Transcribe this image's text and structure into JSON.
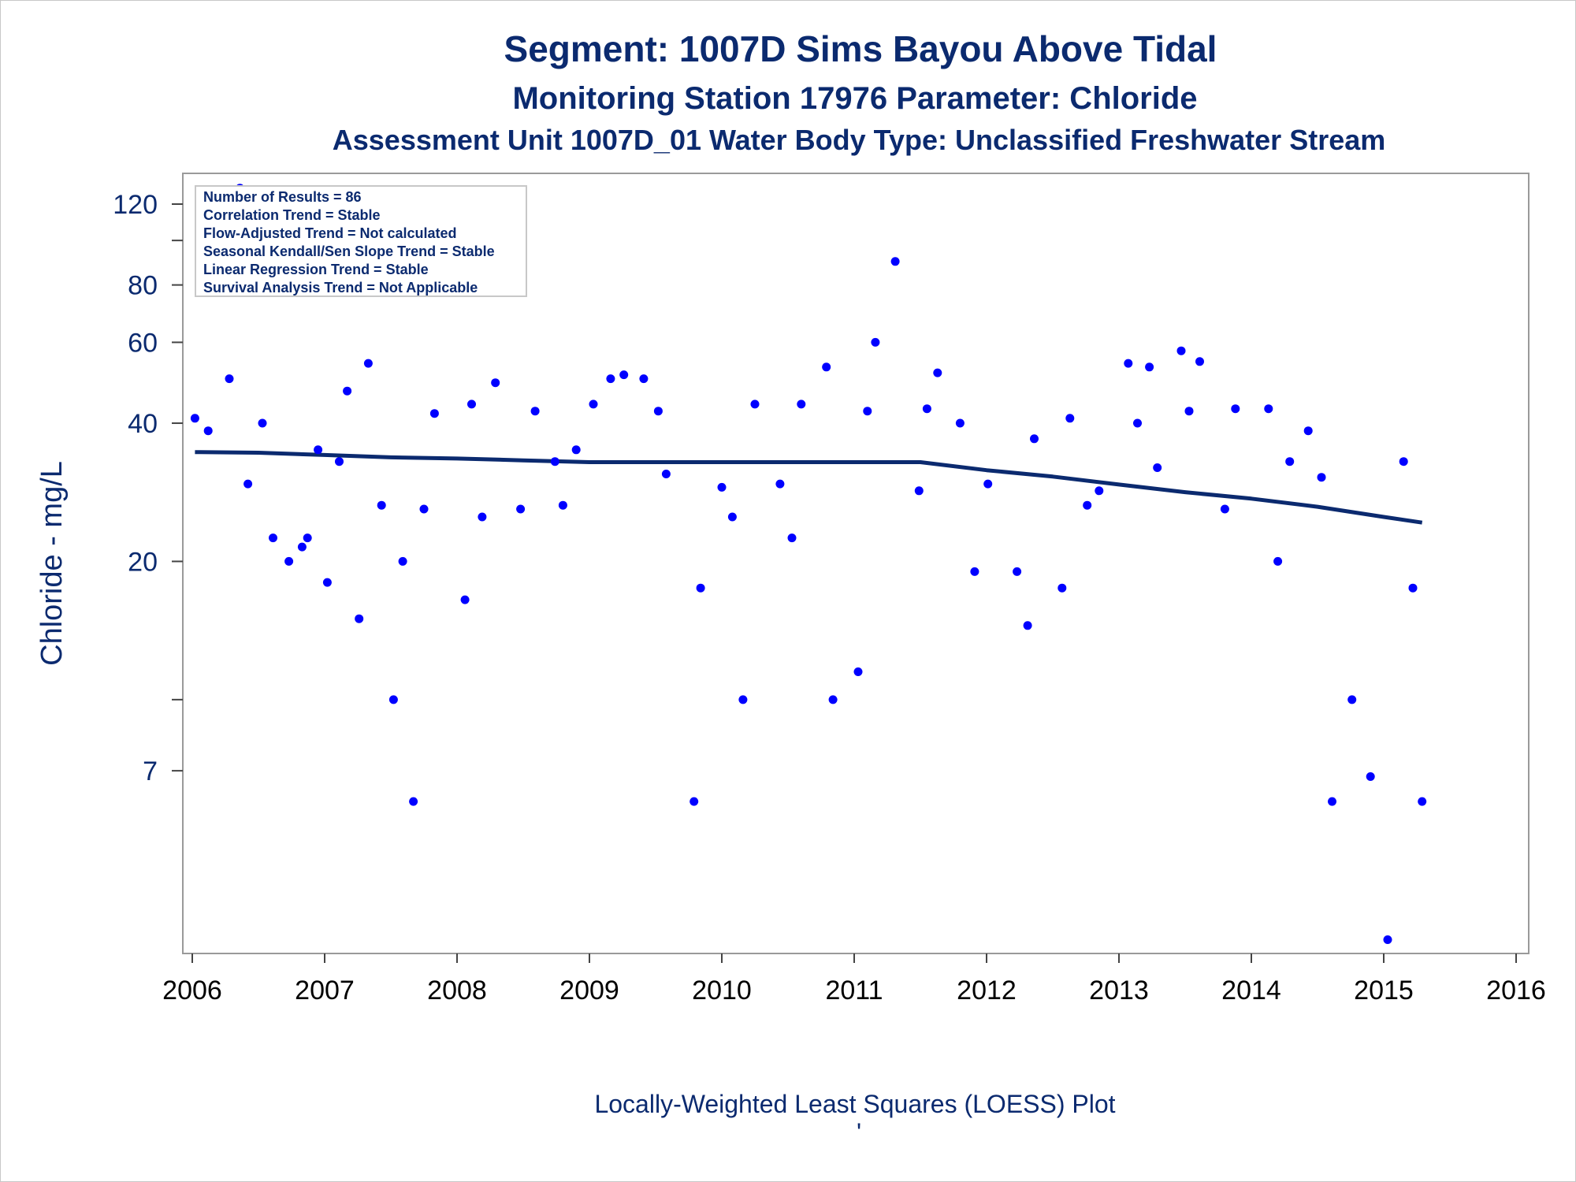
{
  "chart_data": {
    "type": "scatter",
    "title": "Segment: 1007D  Sims Bayou Above Tidal",
    "subtitle": "Monitoring Station 17976 Parameter: Chloride",
    "subtitle2": "Assessment Unit 1007D_01   Water Body Type: Unclassified Freshwater Stream",
    "xlabel": "",
    "ylabel": "Chloride - mg/L",
    "footnote": "Locally-Weighted Least Squares (LOESS) Plot",
    "footnote_mark": "'",
    "x_ticks": [
      "2006",
      "2007",
      "2008",
      "2009",
      "2010",
      "2011",
      "2012",
      "2013",
      "2014",
      "2015",
      "2016"
    ],
    "y_ticks": [
      "120",
      "80",
      "60",
      "40",
      "20",
      "7"
    ],
    "y_scale": "log",
    "xlim": [
      2006.0,
      2016.0
    ],
    "ylim": [
      2.8,
      140
    ],
    "grid": false,
    "stats_box": [
      "Number of Results = 86",
      "Correlation Trend = Stable",
      "Flow-Adjusted Trend = Not calculated",
      "Seasonal Kendall/Sen Slope Trend = Stable",
      "Linear Regression Trend = Stable",
      "Survival Analysis Trend = Not Applicable"
    ],
    "legend_position": "top-left",
    "colors": {
      "points": "#0000ff",
      "trend": "#0b2a6f",
      "text": "#0b2a6f",
      "frame": "#9a9a9a"
    },
    "points": [
      [
        2006.02,
        41
      ],
      [
        2006.12,
        38.5
      ],
      [
        2006.28,
        50
      ],
      [
        2006.36,
        130
      ],
      [
        2006.42,
        29.5
      ],
      [
        2006.53,
        40
      ],
      [
        2006.61,
        22.5
      ],
      [
        2006.73,
        20
      ],
      [
        2006.83,
        21.5
      ],
      [
        2006.87,
        22.5
      ],
      [
        2006.95,
        35
      ],
      [
        2007.02,
        18
      ],
      [
        2007.11,
        33
      ],
      [
        2007.17,
        47
      ],
      [
        2007.26,
        15
      ],
      [
        2007.33,
        54
      ],
      [
        2007.43,
        26.5
      ],
      [
        2007.52,
        10
      ],
      [
        2007.59,
        20
      ],
      [
        2007.67,
        6
      ],
      [
        2007.75,
        26
      ],
      [
        2007.83,
        42
      ],
      [
        2008.06,
        16.5
      ],
      [
        2008.11,
        44
      ],
      [
        2008.19,
        25
      ],
      [
        2008.29,
        49
      ],
      [
        2008.48,
        26
      ],
      [
        2008.59,
        42.5
      ],
      [
        2008.74,
        33
      ],
      [
        2008.8,
        26.5
      ],
      [
        2008.9,
        35
      ],
      [
        2009.03,
        44
      ],
      [
        2009.16,
        50
      ],
      [
        2009.26,
        51
      ],
      [
        2009.41,
        50
      ],
      [
        2009.52,
        42.5
      ],
      [
        2009.58,
        31
      ],
      [
        2009.79,
        6
      ],
      [
        2009.84,
        17.5
      ],
      [
        2010.0,
        29
      ],
      [
        2010.08,
        25
      ],
      [
        2010.16,
        10
      ],
      [
        2010.25,
        44
      ],
      [
        2010.44,
        29.5
      ],
      [
        2010.53,
        22.5
      ],
      [
        2010.6,
        44
      ],
      [
        2010.79,
        53
      ],
      [
        2010.84,
        10
      ],
      [
        2011.03,
        11.5
      ],
      [
        2011.1,
        42.5
      ],
      [
        2011.16,
        60
      ],
      [
        2011.31,
        90
      ],
      [
        2011.49,
        28.5
      ],
      [
        2011.55,
        43
      ],
      [
        2011.63,
        51.5
      ],
      [
        2011.8,
        40
      ],
      [
        2011.91,
        19
      ],
      [
        2012.01,
        29.5
      ],
      [
        2012.23,
        19
      ],
      [
        2012.31,
        14.5
      ],
      [
        2012.36,
        37
      ],
      [
        2012.57,
        17.5
      ],
      [
        2012.63,
        41
      ],
      [
        2012.76,
        26.5
      ],
      [
        2012.85,
        28.5
      ],
      [
        2013.07,
        54
      ],
      [
        2013.14,
        40
      ],
      [
        2013.23,
        53
      ],
      [
        2013.29,
        32
      ],
      [
        2013.47,
        57.5
      ],
      [
        2013.53,
        42.5
      ],
      [
        2013.61,
        54.5
      ],
      [
        2013.8,
        26
      ],
      [
        2013.88,
        43
      ],
      [
        2014.13,
        43
      ],
      [
        2014.2,
        20
      ],
      [
        2014.29,
        33
      ],
      [
        2014.43,
        38.5
      ],
      [
        2014.53,
        30.5
      ],
      [
        2014.61,
        6
      ],
      [
        2014.76,
        10
      ],
      [
        2014.9,
        6.8
      ],
      [
        2015.03,
        3.0
      ],
      [
        2015.15,
        33
      ],
      [
        2015.22,
        17.5
      ],
      [
        2015.29,
        6
      ]
    ],
    "loess": [
      [
        2006.02,
        34.6
      ],
      [
        2006.5,
        34.5
      ],
      [
        2007.0,
        34.1
      ],
      [
        2007.5,
        33.7
      ],
      [
        2008.0,
        33.5
      ],
      [
        2008.5,
        33.2
      ],
      [
        2009.0,
        32.9
      ],
      [
        2009.5,
        32.9
      ],
      [
        2010.0,
        32.9
      ],
      [
        2010.5,
        32.9
      ],
      [
        2011.0,
        32.9
      ],
      [
        2011.5,
        32.9
      ],
      [
        2012.0,
        31.6
      ],
      [
        2012.5,
        30.6
      ],
      [
        2013.0,
        29.4
      ],
      [
        2013.5,
        28.3
      ],
      [
        2014.0,
        27.4
      ],
      [
        2014.5,
        26.3
      ],
      [
        2015.0,
        25.0
      ],
      [
        2015.29,
        24.3
      ]
    ]
  }
}
